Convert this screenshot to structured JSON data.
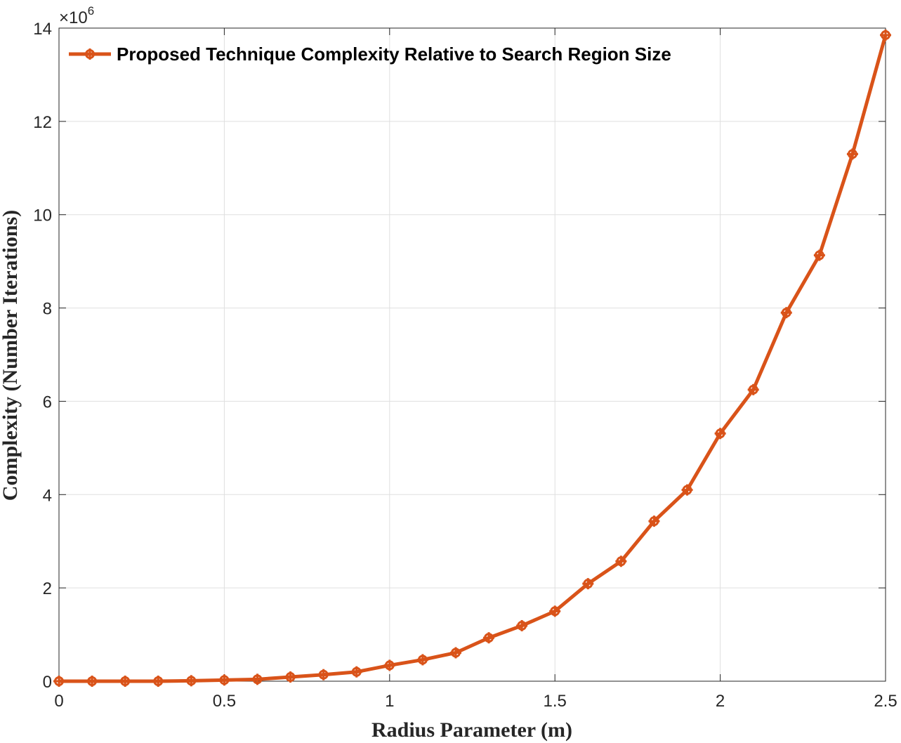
{
  "chart_data": {
    "type": "line",
    "xlabel": "Radius Parameter (m)",
    "ylabel": "Complexity (Number Iterations)",
    "xlim": [
      0,
      2.5
    ],
    "ylim": [
      0,
      14000000
    ],
    "xticks": [
      0,
      0.5,
      1,
      1.5,
      2,
      2.5
    ],
    "xtick_labels": [
      "0",
      "0.5",
      "1",
      "1.5",
      "2",
      "2.5"
    ],
    "yticks": [
      0,
      2000000,
      4000000,
      6000000,
      8000000,
      10000000,
      12000000,
      14000000
    ],
    "ytick_labels": [
      "0",
      "2",
      "4",
      "6",
      "8",
      "10",
      "12",
      "14"
    ],
    "y_exponent_label": {
      "base": "×10",
      "power": "6"
    },
    "grid": true,
    "legend": {
      "position": "top-left"
    },
    "colors": {
      "series": "#D95319",
      "grid": "#dfdfdf",
      "axis": "#262626"
    },
    "series": [
      {
        "name": "Proposed Technique Complexity Relative to Search Region Size",
        "x": [
          0,
          0.1,
          0.2,
          0.3,
          0.4,
          0.5,
          0.6,
          0.7,
          0.8,
          0.9,
          1.0,
          1.1,
          1.2,
          1.3,
          1.4,
          1.5,
          1.6,
          1.7,
          1.8,
          1.9,
          2.0,
          2.1,
          2.2,
          2.3,
          2.4,
          2.5
        ],
        "y": [
          0,
          0,
          0,
          0,
          10000,
          25000,
          40000,
          90000,
          140000,
          200000,
          340000,
          460000,
          610000,
          930000,
          1190000,
          1500000,
          2090000,
          2570000,
          3430000,
          4100000,
          5310000,
          6250000,
          7900000,
          9130000,
          11300000,
          13850000
        ]
      }
    ]
  }
}
